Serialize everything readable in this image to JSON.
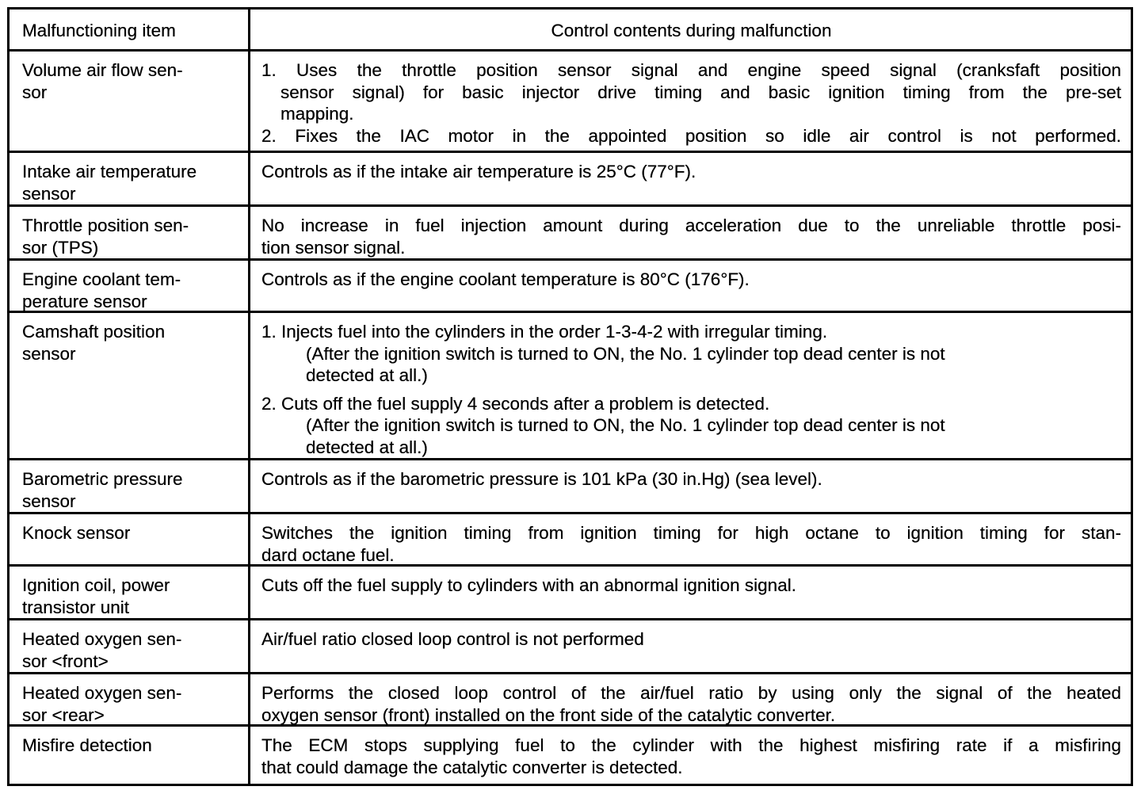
{
  "header": {
    "item": "Malfunctioning item",
    "control": "Control contents during malfunction"
  },
  "rows": [
    {
      "item": [
        "Volume air flow sen-",
        "sor"
      ],
      "control": [
        {
          "t": "1. Uses the throttle position sensor signal and engine speed signal (cranksfaft position",
          "i": 0
        },
        {
          "t": "sensor signal) for basic injector drive timing and basic ignition timing from the pre-set",
          "i": 1
        },
        {
          "t": "mapping.",
          "i": 1,
          "last": true
        },
        {
          "t": "2. Fixes the IAC motor in the appointed position so idle air control is not performed.",
          "i": 0
        }
      ]
    },
    {
      "item": [
        "Intake air temperature",
        "sensor"
      ],
      "control": [
        {
          "t": "Controls as if the intake air temperature is 25°C (77°F).",
          "i": 0,
          "last": true
        }
      ]
    },
    {
      "item": [
        "Throttle position sen-",
        "sor (TPS)"
      ],
      "control": [
        {
          "t": "No increase in fuel injection amount during acceleration due to the unreliable throttle posi-",
          "i": 0
        },
        {
          "t": "tion sensor signal.",
          "i": 0,
          "last": true
        }
      ]
    },
    {
      "item": [
        "Engine coolant tem-",
        "perature sensor"
      ],
      "control": [
        {
          "t": "Controls as if the engine coolant temperature is 80°C (176°F).",
          "i": 0,
          "last": true
        }
      ]
    },
    {
      "item": [
        "Camshaft position",
        "sensor"
      ],
      "control": [
        {
          "t": "1. Injects fuel into the cylinders in the order 1-3-4-2 with irregular timing.",
          "i": 0,
          "last": true
        },
        {
          "t": "(After the ignition switch is turned to ON, the No. 1 cylinder top dead center is not",
          "i": 2,
          "last": true
        },
        {
          "t": "detected at all.)",
          "i": 2,
          "last": true
        },
        {
          "t": "2. Cuts off the fuel supply 4 seconds after a problem is detected.",
          "i": 0,
          "last": true,
          "gap": true
        },
        {
          "t": "(After the ignition switch is turned to ON, the No. 1 cylinder top dead center is not",
          "i": 2,
          "last": true
        },
        {
          "t": "detected at all.)",
          "i": 2,
          "last": true
        }
      ]
    },
    {
      "item": [
        "Barometric pressure",
        "sensor"
      ],
      "control": [
        {
          "t": "Controls as if the barometric pressure is 101 kPa (30 in.Hg) (sea level).",
          "i": 0,
          "last": true
        }
      ]
    },
    {
      "item": [
        "Knock sensor"
      ],
      "control": [
        {
          "t": "Switches the ignition timing from ignition timing for high octane to ignition timing for stan-",
          "i": 0
        },
        {
          "t": "dard octane fuel.",
          "i": 0,
          "last": true
        }
      ]
    },
    {
      "item": [
        "Ignition coil, power",
        "transistor unit"
      ],
      "control": [
        {
          "t": "Cuts off the fuel supply to cylinders with an abnormal ignition signal.",
          "i": 0,
          "last": true
        }
      ]
    },
    {
      "item": [
        "Heated oxygen sen-",
        "sor <front>"
      ],
      "control": [
        {
          "t": "Air/fuel ratio closed loop control is not performed",
          "i": 0,
          "last": true
        }
      ]
    },
    {
      "item": [
        "Heated oxygen sen-",
        "sor <rear>"
      ],
      "control": [
        {
          "t": "Performs the closed loop control of the air/fuel ratio by using only the signal of the heated",
          "i": 0
        },
        {
          "t": "oxygen sensor (front) installed on the front side of the catalytic converter.",
          "i": 0,
          "last": true
        }
      ]
    },
    {
      "item": [
        "Misfire detection"
      ],
      "control": [
        {
          "t": "The ECM stops supplying fuel to the cylinder with the highest misfiring rate if a misfiring",
          "i": 0
        },
        {
          "t": "that could damage the catalytic converter is detected.",
          "i": 0,
          "last": true
        }
      ]
    }
  ]
}
